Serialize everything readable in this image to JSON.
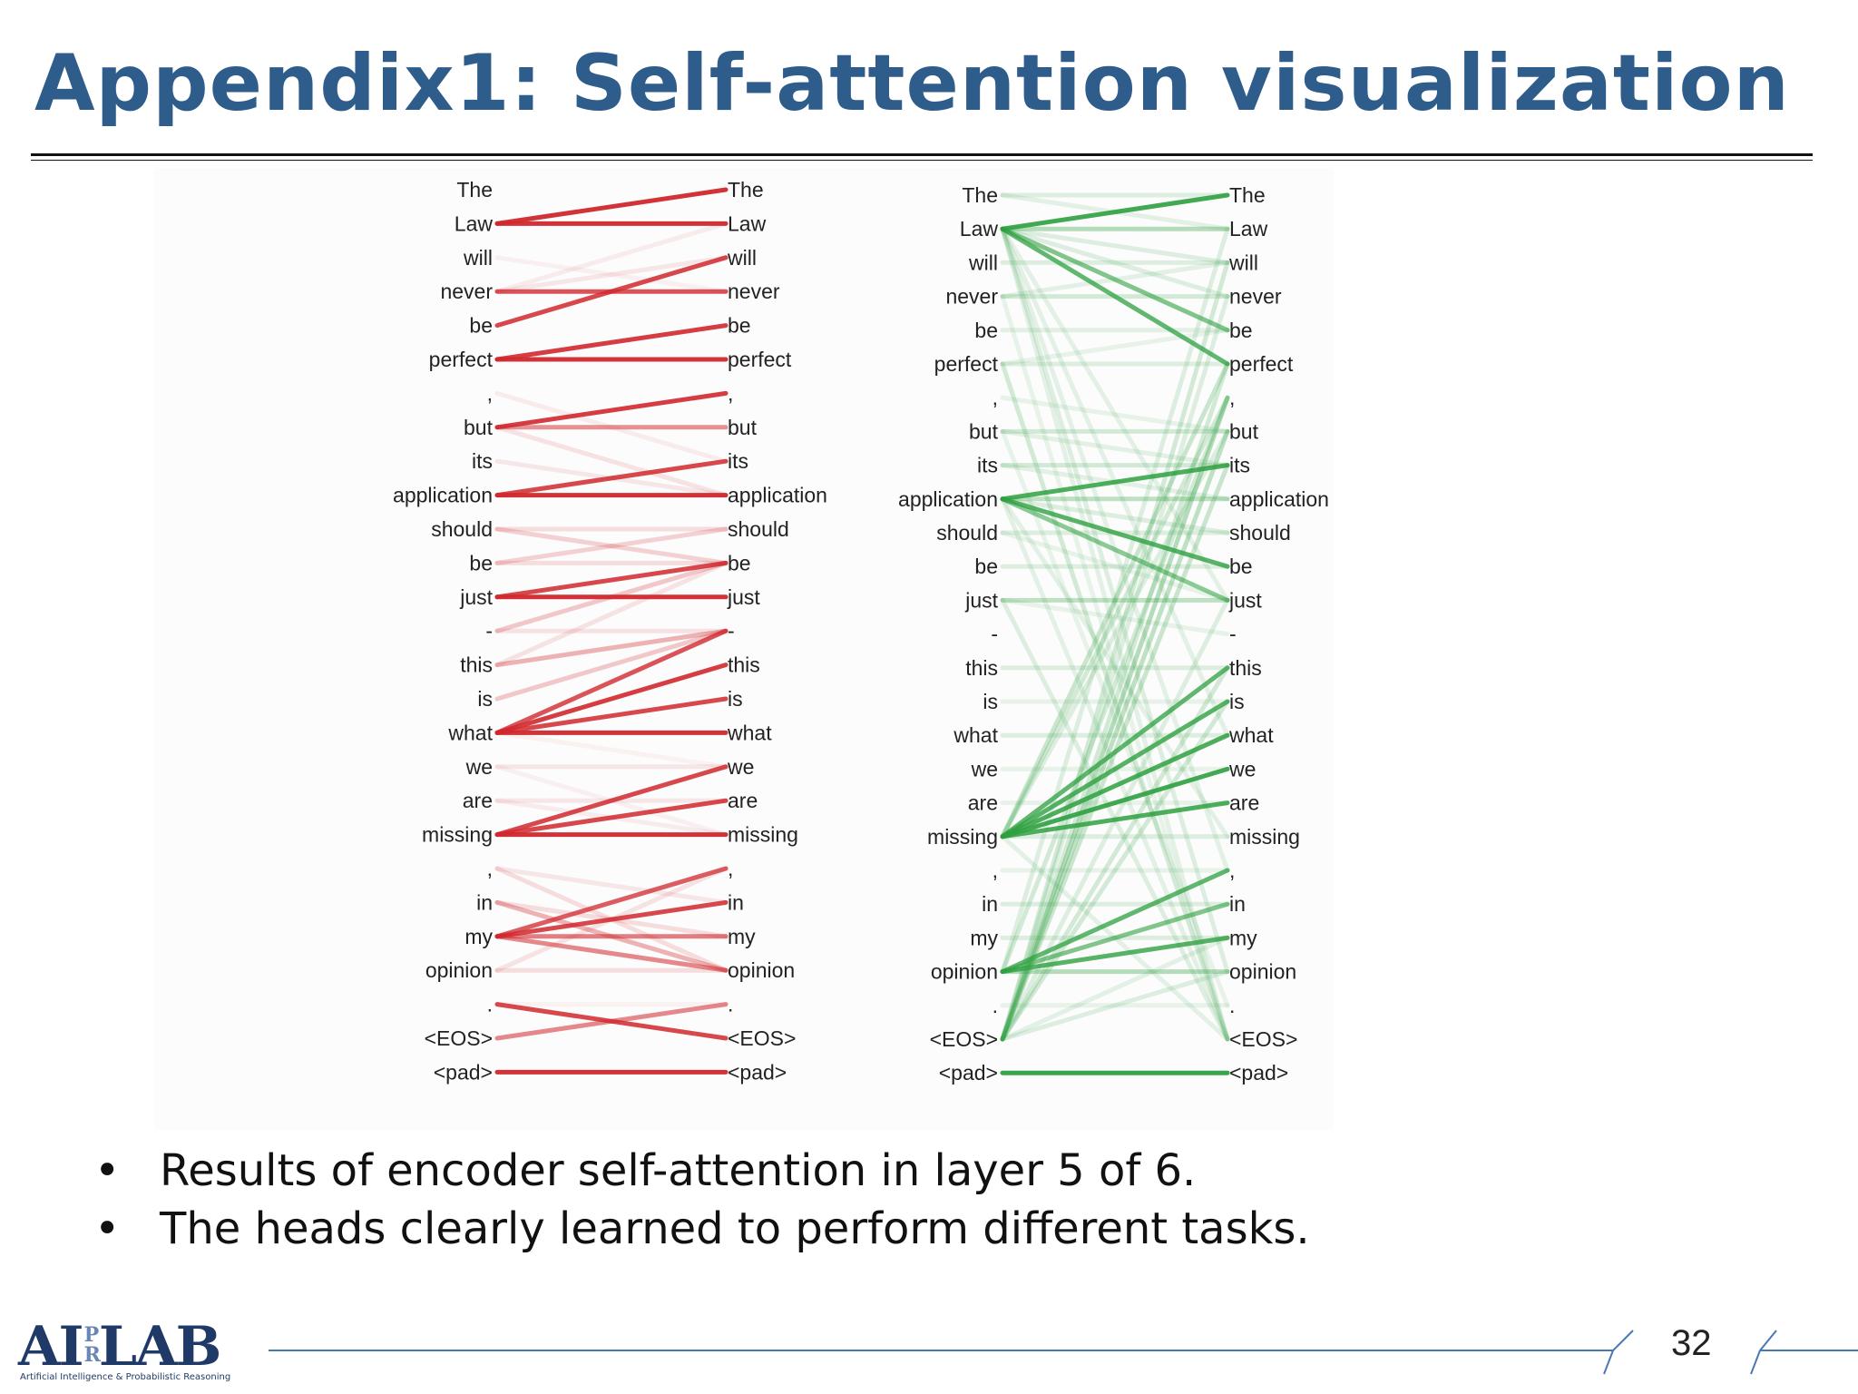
{
  "slide": {
    "title": "Appendix1: Self-attention visualization",
    "bullet_marker": "•",
    "bullets": [
      "Results of encoder self-attention in layer 5 of 6.",
      "The heads clearly learned to perform different tasks."
    ],
    "page_number": "32",
    "logo": {
      "text_left": "AI",
      "text_mid": "P",
      "text_mid2": "R",
      "text_right": "LAB",
      "subtitle": "Artificial Intelligence & Probabilistic Reasoning"
    }
  },
  "tokens": [
    "The",
    "Law",
    "will",
    "never",
    "be",
    "perfect",
    ",",
    "but",
    "its",
    "application",
    "should",
    "be",
    "just",
    "-",
    "this",
    "is",
    "what",
    "we",
    "are",
    "missing",
    ",",
    "in",
    "my",
    "opinion",
    ".",
    "<EOS>",
    "<pad>"
  ],
  "heads": [
    {
      "color": "#d0282e",
      "links": [
        [
          1,
          0,
          0.95
        ],
        [
          1,
          1,
          0.95
        ],
        [
          3,
          3,
          0.8
        ],
        [
          4,
          2,
          0.85
        ],
        [
          3,
          1,
          0.08
        ],
        [
          2,
          3,
          0.06
        ],
        [
          3,
          2,
          0.1
        ],
        [
          5,
          4,
          0.9
        ],
        [
          5,
          5,
          0.95
        ],
        [
          7,
          6,
          0.9
        ],
        [
          7,
          7,
          0.5
        ],
        [
          6,
          8,
          0.08
        ],
        [
          9,
          8,
          0.85
        ],
        [
          9,
          9,
          0.95
        ],
        [
          8,
          9,
          0.1
        ],
        [
          7,
          9,
          0.12
        ],
        [
          10,
          10,
          0.15
        ],
        [
          10,
          11,
          0.2
        ],
        [
          11,
          10,
          0.2
        ],
        [
          11,
          11,
          0.15
        ],
        [
          12,
          11,
          0.85
        ],
        [
          12,
          12,
          0.95
        ],
        [
          13,
          11,
          0.25
        ],
        [
          14,
          13,
          0.35
        ],
        [
          15,
          13,
          0.25
        ],
        [
          14,
          11,
          0.12
        ],
        [
          13,
          13,
          0.12
        ],
        [
          16,
          13,
          0.8
        ],
        [
          16,
          14,
          0.9
        ],
        [
          16,
          15,
          0.85
        ],
        [
          16,
          16,
          0.95
        ],
        [
          16,
          17,
          0.05
        ],
        [
          17,
          17,
          0.1
        ],
        [
          18,
          19,
          0.08
        ],
        [
          19,
          17,
          0.85
        ],
        [
          19,
          18,
          0.85
        ],
        [
          19,
          19,
          0.95
        ],
        [
          18,
          18,
          0.1
        ],
        [
          17,
          19,
          0.06
        ],
        [
          20,
          23,
          0.15
        ],
        [
          21,
          23,
          0.35
        ],
        [
          20,
          21,
          0.1
        ],
        [
          23,
          20,
          0.12
        ],
        [
          21,
          22,
          0.15
        ],
        [
          23,
          23,
          0.15
        ],
        [
          22,
          20,
          0.75
        ],
        [
          22,
          21,
          0.85
        ],
        [
          22,
          22,
          0.6
        ],
        [
          22,
          23,
          0.55
        ],
        [
          24,
          25,
          0.85
        ],
        [
          25,
          24,
          0.55
        ],
        [
          24,
          24,
          0.05
        ],
        [
          26,
          26,
          0.95
        ]
      ]
    },
    {
      "color": "#2ea040",
      "links": [
        [
          1,
          0,
          0.9
        ],
        [
          1,
          1,
          0.35
        ],
        [
          1,
          4,
          0.6
        ],
        [
          1,
          5,
          0.75
        ],
        [
          1,
          3,
          0.15
        ],
        [
          1,
          2,
          0.15
        ],
        [
          1,
          12,
          0.12
        ],
        [
          1,
          16,
          0.12
        ],
        [
          1,
          20,
          0.12
        ],
        [
          1,
          23,
          0.15
        ],
        [
          1,
          25,
          0.12
        ],
        [
          0,
          0,
          0.15
        ],
        [
          0,
          1,
          0.12
        ],
        [
          2,
          2,
          0.15
        ],
        [
          3,
          3,
          0.2
        ],
        [
          3,
          2,
          0.12
        ],
        [
          4,
          4,
          0.12
        ],
        [
          5,
          5,
          0.15
        ],
        [
          5,
          4,
          0.1
        ],
        [
          7,
          7,
          0.2
        ],
        [
          8,
          8,
          0.2
        ],
        [
          8,
          9,
          0.12
        ],
        [
          7,
          8,
          0.12
        ],
        [
          6,
          7,
          0.1
        ],
        [
          9,
          8,
          0.85
        ],
        [
          9,
          9,
          0.3
        ],
        [
          9,
          11,
          0.8
        ],
        [
          9,
          12,
          0.55
        ],
        [
          9,
          10,
          0.15
        ],
        [
          9,
          19,
          0.12
        ],
        [
          9,
          25,
          0.12
        ],
        [
          10,
          10,
          0.15
        ],
        [
          10,
          12,
          0.1
        ],
        [
          11,
          11,
          0.15
        ],
        [
          12,
          12,
          0.3
        ],
        [
          12,
          13,
          0.1
        ],
        [
          14,
          14,
          0.15
        ],
        [
          15,
          15,
          0.1
        ],
        [
          16,
          16,
          0.15
        ],
        [
          17,
          17,
          0.1
        ],
        [
          18,
          18,
          0.1
        ],
        [
          19,
          14,
          0.75
        ],
        [
          19,
          15,
          0.8
        ],
        [
          19,
          16,
          0.85
        ],
        [
          19,
          17,
          0.9
        ],
        [
          19,
          18,
          0.85
        ],
        [
          19,
          19,
          0.15
        ],
        [
          19,
          5,
          0.25
        ],
        [
          19,
          6,
          0.2
        ],
        [
          19,
          7,
          0.15
        ],
        [
          22,
          22,
          0.15
        ],
        [
          21,
          21,
          0.15
        ],
        [
          20,
          20,
          0.1
        ],
        [
          23,
          20,
          0.75
        ],
        [
          23,
          21,
          0.6
        ],
        [
          23,
          22,
          0.8
        ],
        [
          23,
          23,
          0.35
        ],
        [
          23,
          1,
          0.15
        ],
        [
          23,
          6,
          0.2
        ],
        [
          24,
          24,
          0.1
        ],
        [
          25,
          6,
          0.35
        ],
        [
          25,
          7,
          0.3
        ],
        [
          25,
          8,
          0.25
        ],
        [
          25,
          23,
          0.15
        ],
        [
          25,
          22,
          0.12
        ],
        [
          25,
          2,
          0.2
        ],
        [
          25,
          3,
          0.15
        ],
        [
          25,
          14,
          0.2
        ],
        [
          25,
          15,
          0.2
        ],
        [
          25,
          12,
          0.15
        ],
        [
          25,
          5,
          0.2
        ],
        [
          5,
          25,
          0.2
        ],
        [
          12,
          25,
          0.15
        ],
        [
          19,
          25,
          0.12
        ],
        [
          3,
          25,
          0.1
        ],
        [
          7,
          24,
          0.1
        ],
        [
          26,
          26,
          0.95
        ]
      ]
    }
  ]
}
